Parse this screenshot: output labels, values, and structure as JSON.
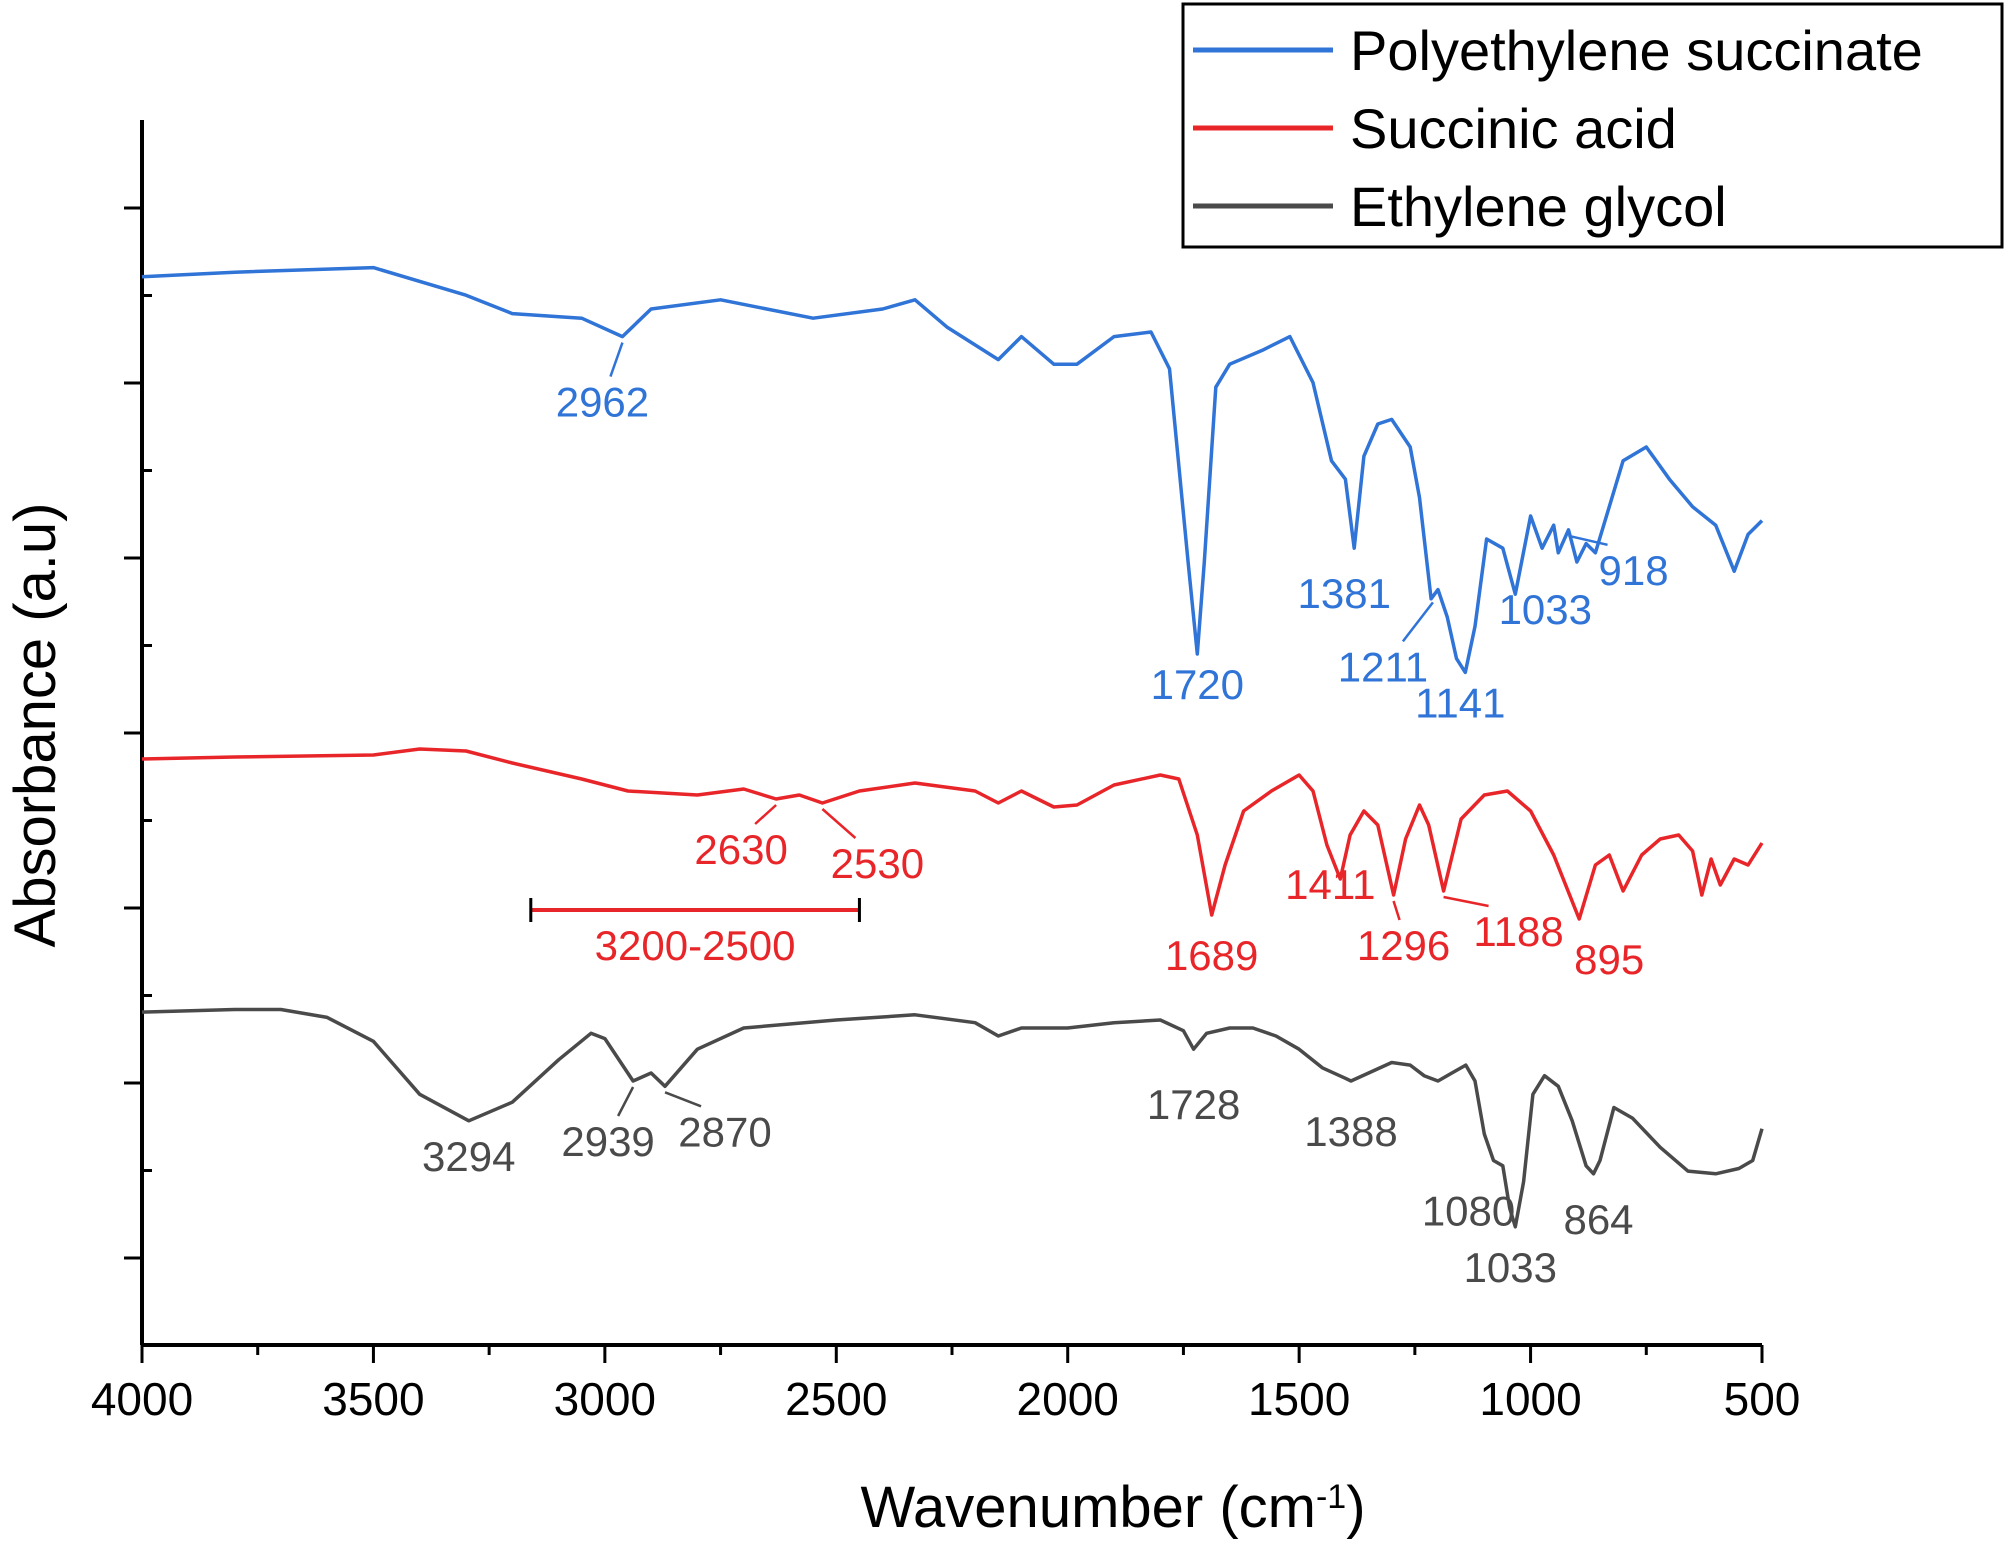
{
  "chart_data": {
    "type": "line",
    "xlabel": "Wavenumber (cm",
    "xlabel_sup": "-1",
    "xlabel_close": ")",
    "ylabel": "Absorbance (a.u)",
    "xlim": [
      4000,
      500
    ],
    "x_reversed": true,
    "xticks": [
      "4000",
      "3500",
      "3000",
      "2500",
      "2000",
      "1500",
      "1000",
      "500"
    ],
    "y_tick_labels_shown": false,
    "grid": false,
    "legend_position": "top-right",
    "series": [
      {
        "name": "Polyethylene succinate",
        "color": "#2f74d6",
        "points": [
          [
            4000,
            0.92
          ],
          [
            3800,
            0.93
          ],
          [
            3500,
            0.94
          ],
          [
            3300,
            0.88
          ],
          [
            3200,
            0.84
          ],
          [
            3050,
            0.83
          ],
          [
            2962,
            0.79
          ],
          [
            2900,
            0.85
          ],
          [
            2750,
            0.87
          ],
          [
            2550,
            0.83
          ],
          [
            2400,
            0.85
          ],
          [
            2330,
            0.87
          ],
          [
            2260,
            0.81
          ],
          [
            2150,
            0.74
          ],
          [
            2100,
            0.79
          ],
          [
            2030,
            0.73
          ],
          [
            1980,
            0.73
          ],
          [
            1900,
            0.79
          ],
          [
            1820,
            0.8
          ],
          [
            1780,
            0.72
          ],
          [
            1740,
            0.3
          ],
          [
            1720,
            0.1
          ],
          [
            1705,
            0.3
          ],
          [
            1680,
            0.68
          ],
          [
            1650,
            0.73
          ],
          [
            1580,
            0.76
          ],
          [
            1520,
            0.79
          ],
          [
            1470,
            0.69
          ],
          [
            1430,
            0.52
          ],
          [
            1400,
            0.48
          ],
          [
            1381,
            0.33
          ],
          [
            1360,
            0.53
          ],
          [
            1330,
            0.6
          ],
          [
            1300,
            0.61
          ],
          [
            1260,
            0.55
          ],
          [
            1240,
            0.44
          ],
          [
            1215,
            0.22
          ],
          [
            1200,
            0.24
          ],
          [
            1180,
            0.18
          ],
          [
            1160,
            0.09
          ],
          [
            1141,
            0.06
          ],
          [
            1120,
            0.16
          ],
          [
            1095,
            0.35
          ],
          [
            1060,
            0.33
          ],
          [
            1033,
            0.23
          ],
          [
            1000,
            0.4
          ],
          [
            975,
            0.33
          ],
          [
            950,
            0.38
          ],
          [
            940,
            0.32
          ],
          [
            918,
            0.37
          ],
          [
            900,
            0.3
          ],
          [
            880,
            0.34
          ],
          [
            860,
            0.32
          ],
          [
            800,
            0.52
          ],
          [
            750,
            0.55
          ],
          [
            700,
            0.48
          ],
          [
            650,
            0.42
          ],
          [
            600,
            0.38
          ],
          [
            560,
            0.28
          ],
          [
            530,
            0.36
          ],
          [
            500,
            0.39
          ]
        ]
      },
      {
        "name": "Succinic acid",
        "color": "#e8262a",
        "points": [
          [
            4000,
            0.88
          ],
          [
            3800,
            0.89
          ],
          [
            3500,
            0.9
          ],
          [
            3400,
            0.93
          ],
          [
            3300,
            0.92
          ],
          [
            3200,
            0.86
          ],
          [
            3050,
            0.78
          ],
          [
            2950,
            0.72
          ],
          [
            2800,
            0.7
          ],
          [
            2700,
            0.73
          ],
          [
            2630,
            0.68
          ],
          [
            2580,
            0.7
          ],
          [
            2530,
            0.66
          ],
          [
            2450,
            0.72
          ],
          [
            2330,
            0.76
          ],
          [
            2200,
            0.72
          ],
          [
            2150,
            0.66
          ],
          [
            2100,
            0.72
          ],
          [
            2030,
            0.64
          ],
          [
            1980,
            0.65
          ],
          [
            1900,
            0.75
          ],
          [
            1800,
            0.8
          ],
          [
            1760,
            0.78
          ],
          [
            1720,
            0.5
          ],
          [
            1689,
            0.1
          ],
          [
            1660,
            0.35
          ],
          [
            1620,
            0.62
          ],
          [
            1560,
            0.72
          ],
          [
            1500,
            0.8
          ],
          [
            1470,
            0.72
          ],
          [
            1440,
            0.45
          ],
          [
            1411,
            0.28
          ],
          [
            1390,
            0.5
          ],
          [
            1360,
            0.62
          ],
          [
            1330,
            0.55
          ],
          [
            1296,
            0.2
          ],
          [
            1270,
            0.48
          ],
          [
            1240,
            0.65
          ],
          [
            1220,
            0.55
          ],
          [
            1188,
            0.22
          ],
          [
            1150,
            0.58
          ],
          [
            1100,
            0.7
          ],
          [
            1050,
            0.72
          ],
          [
            1000,
            0.62
          ],
          [
            950,
            0.4
          ],
          [
            895,
            0.08
          ],
          [
            860,
            0.35
          ],
          [
            830,
            0.4
          ],
          [
            800,
            0.22
          ],
          [
            760,
            0.4
          ],
          [
            720,
            0.48
          ],
          [
            680,
            0.5
          ],
          [
            650,
            0.42
          ],
          [
            630,
            0.2
          ],
          [
            610,
            0.38
          ],
          [
            590,
            0.25
          ],
          [
            560,
            0.38
          ],
          [
            530,
            0.35
          ],
          [
            500,
            0.46
          ]
        ]
      },
      {
        "name": "Ethylene glycol",
        "color": "#4a4a4a",
        "points": [
          [
            4000,
            0.86
          ],
          [
            3800,
            0.87
          ],
          [
            3700,
            0.87
          ],
          [
            3600,
            0.84
          ],
          [
            3500,
            0.75
          ],
          [
            3400,
            0.55
          ],
          [
            3294,
            0.45
          ],
          [
            3200,
            0.52
          ],
          [
            3100,
            0.68
          ],
          [
            3030,
            0.78
          ],
          [
            3000,
            0.76
          ],
          [
            2939,
            0.6
          ],
          [
            2900,
            0.63
          ],
          [
            2870,
            0.58
          ],
          [
            2800,
            0.72
          ],
          [
            2700,
            0.8
          ],
          [
            2500,
            0.83
          ],
          [
            2330,
            0.85
          ],
          [
            2200,
            0.82
          ],
          [
            2150,
            0.77
          ],
          [
            2100,
            0.8
          ],
          [
            2000,
            0.8
          ],
          [
            1900,
            0.82
          ],
          [
            1800,
            0.83
          ],
          [
            1750,
            0.79
          ],
          [
            1728,
            0.72
          ],
          [
            1700,
            0.78
          ],
          [
            1650,
            0.8
          ],
          [
            1600,
            0.8
          ],
          [
            1550,
            0.77
          ],
          [
            1500,
            0.72
          ],
          [
            1450,
            0.65
          ],
          [
            1400,
            0.61
          ],
          [
            1388,
            0.6
          ],
          [
            1350,
            0.63
          ],
          [
            1300,
            0.67
          ],
          [
            1260,
            0.66
          ],
          [
            1230,
            0.62
          ],
          [
            1200,
            0.6
          ],
          [
            1170,
            0.63
          ],
          [
            1140,
            0.66
          ],
          [
            1120,
            0.6
          ],
          [
            1100,
            0.4
          ],
          [
            1080,
            0.3
          ],
          [
            1060,
            0.28
          ],
          [
            1045,
            0.12
          ],
          [
            1033,
            0.05
          ],
          [
            1015,
            0.22
          ],
          [
            995,
            0.55
          ],
          [
            970,
            0.62
          ],
          [
            940,
            0.58
          ],
          [
            910,
            0.45
          ],
          [
            880,
            0.28
          ],
          [
            864,
            0.25
          ],
          [
            850,
            0.3
          ],
          [
            820,
            0.5
          ],
          [
            780,
            0.46
          ],
          [
            720,
            0.35
          ],
          [
            660,
            0.26
          ],
          [
            600,
            0.25
          ],
          [
            550,
            0.27
          ],
          [
            520,
            0.3
          ],
          [
            500,
            0.42
          ]
        ]
      }
    ],
    "annotations": [
      {
        "text": "2962",
        "series": 0,
        "x": 2962
      },
      {
        "text": "1720",
        "series": 0,
        "x": 1720
      },
      {
        "text": "1381",
        "series": 0,
        "x": 1381
      },
      {
        "text": "1211",
        "series": 0,
        "x": 1211
      },
      {
        "text": "1141",
        "series": 0,
        "x": 1141
      },
      {
        "text": "1033",
        "series": 0,
        "x": 1033
      },
      {
        "text": "918",
        "series": 0,
        "x": 918
      },
      {
        "text": "2630",
        "series": 1,
        "x": 2630
      },
      {
        "text": "2530",
        "series": 1,
        "x": 2530
      },
      {
        "text": "3200-2500",
        "series": 1,
        "x_range": [
          3160,
          2450
        ]
      },
      {
        "text": "1689",
        "series": 1,
        "x": 1689
      },
      {
        "text": "1411",
        "series": 1,
        "x": 1411
      },
      {
        "text": "1296",
        "series": 1,
        "x": 1296
      },
      {
        "text": "1188",
        "series": 1,
        "x": 1188
      },
      {
        "text": "895",
        "series": 1,
        "x": 895
      },
      {
        "text": "3294",
        "series": 2,
        "x": 3294
      },
      {
        "text": "2939",
        "series": 2,
        "x": 2939
      },
      {
        "text": "2870",
        "series": 2,
        "x": 2870
      },
      {
        "text": "1728",
        "series": 2,
        "x": 1728
      },
      {
        "text": "1388",
        "series": 2,
        "x": 1388
      },
      {
        "text": "1080",
        "series": 2,
        "x": 1080
      },
      {
        "text": "1033",
        "series": 2,
        "x": 1033
      },
      {
        "text": "864",
        "series": 2,
        "x": 864
      }
    ]
  }
}
